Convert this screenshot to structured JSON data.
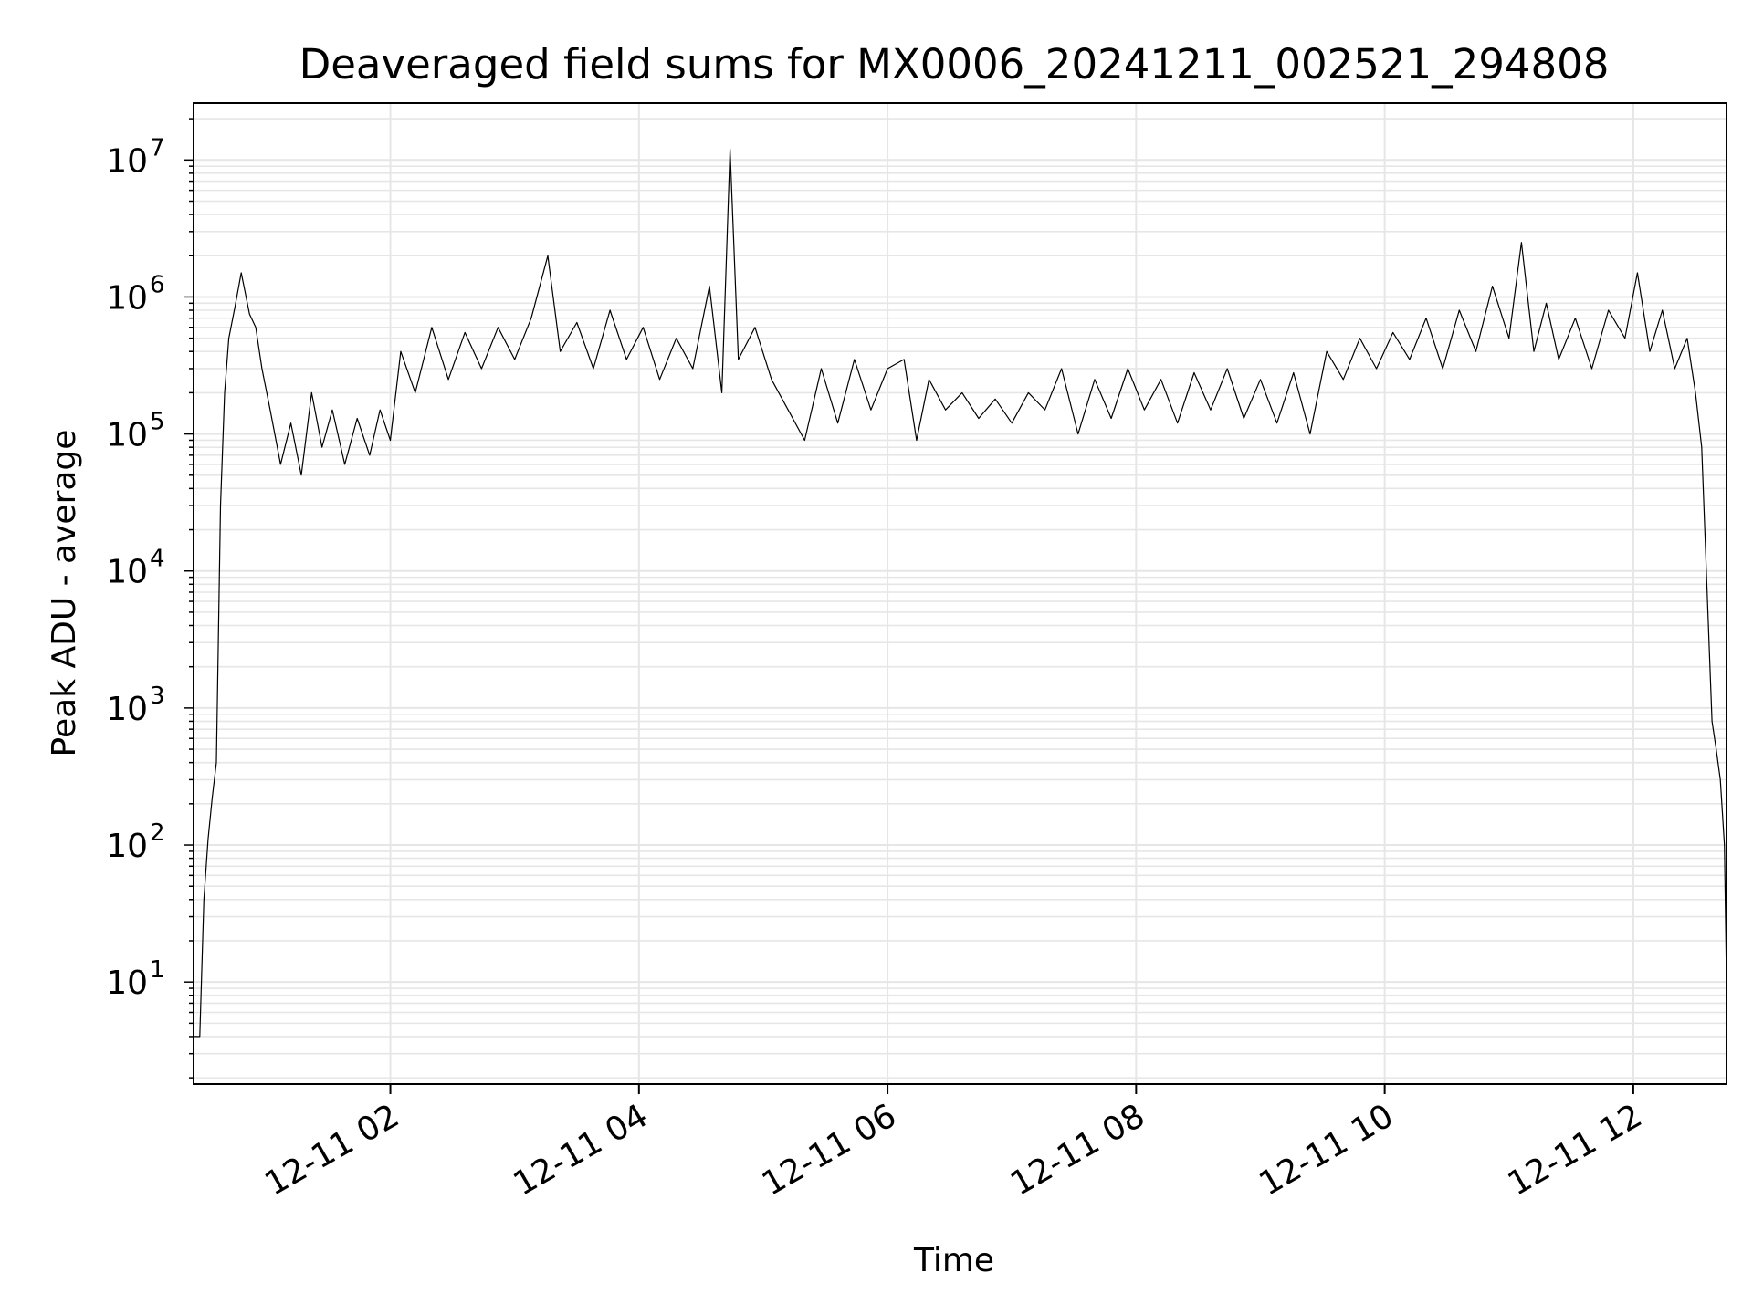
{
  "chart_data": {
    "type": "line",
    "title": "Deaveraged field sums for MX0006_20241211_002521_294808",
    "xlabel": "Time",
    "ylabel": "Peak ADU - average",
    "x_scale": "time",
    "y_scale": "log",
    "grid": true,
    "legend": "none",
    "xlim": [
      "2024-12-11 00:25",
      "2024-12-11 12:45"
    ],
    "ylim": [
      1.8,
      26000000
    ],
    "x_ticks": [
      {
        "value": "2024-12-11 02:00",
        "label": "12-11 02"
      },
      {
        "value": "2024-12-11 04:00",
        "label": "12-11 04"
      },
      {
        "value": "2024-12-11 06:00",
        "label": "12-11 06"
      },
      {
        "value": "2024-12-11 08:00",
        "label": "12-11 08"
      },
      {
        "value": "2024-12-11 10:00",
        "label": "12-11 10"
      },
      {
        "value": "2024-12-11 12:00",
        "label": "12-11 12"
      }
    ],
    "y_ticks": [
      {
        "value": 10,
        "base": "10",
        "exp": "1"
      },
      {
        "value": 100,
        "base": "10",
        "exp": "2"
      },
      {
        "value": 1000,
        "base": "10",
        "exp": "3"
      },
      {
        "value": 10000,
        "base": "10",
        "exp": "4"
      },
      {
        "value": 100000,
        "base": "10",
        "exp": "5"
      },
      {
        "value": 1000000,
        "base": "10",
        "exp": "6"
      },
      {
        "value": 10000000,
        "base": "10",
        "exp": "7"
      }
    ],
    "series": [
      {
        "color": "#000000",
        "points": [
          [
            "2024-12-11 00:25",
            4
          ],
          [
            "2024-12-11 00:28",
            4
          ],
          [
            "2024-12-11 00:30",
            40
          ],
          [
            "2024-12-11 00:32",
            110
          ],
          [
            "2024-12-11 00:34",
            220
          ],
          [
            "2024-12-11 00:36",
            400
          ],
          [
            "2024-12-11 00:38",
            30000
          ],
          [
            "2024-12-11 00:40",
            200000
          ],
          [
            "2024-12-11 00:42",
            500000
          ],
          [
            "2024-12-11 00:45",
            850000
          ],
          [
            "2024-12-11 00:48",
            1500000
          ],
          [
            "2024-12-11 00:52",
            750000
          ],
          [
            "2024-12-11 00:55",
            600000
          ],
          [
            "2024-12-11 00:58",
            300000
          ],
          [
            "2024-12-11 01:02",
            150000
          ],
          [
            "2024-12-11 01:07",
            60000
          ],
          [
            "2024-12-11 01:12",
            120000
          ],
          [
            "2024-12-11 01:17",
            50000
          ],
          [
            "2024-12-11 01:22",
            200000
          ],
          [
            "2024-12-11 01:27",
            80000
          ],
          [
            "2024-12-11 01:32",
            150000
          ],
          [
            "2024-12-11 01:38",
            60000
          ],
          [
            "2024-12-11 01:44",
            130000
          ],
          [
            "2024-12-11 01:50",
            70000
          ],
          [
            "2024-12-11 01:55",
            150000
          ],
          [
            "2024-12-11 02:00",
            90000
          ],
          [
            "2024-12-11 02:05",
            400000
          ],
          [
            "2024-12-11 02:12",
            200000
          ],
          [
            "2024-12-11 02:20",
            600000
          ],
          [
            "2024-12-11 02:28",
            250000
          ],
          [
            "2024-12-11 02:36",
            550000
          ],
          [
            "2024-12-11 02:44",
            300000
          ],
          [
            "2024-12-11 02:52",
            600000
          ],
          [
            "2024-12-11 03:00",
            350000
          ],
          [
            "2024-12-11 03:08",
            700000
          ],
          [
            "2024-12-11 03:16",
            2000000
          ],
          [
            "2024-12-11 03:22",
            400000
          ],
          [
            "2024-12-11 03:30",
            650000
          ],
          [
            "2024-12-11 03:38",
            300000
          ],
          [
            "2024-12-11 03:46",
            800000
          ],
          [
            "2024-12-11 03:54",
            350000
          ],
          [
            "2024-12-11 04:02",
            600000
          ],
          [
            "2024-12-11 04:10",
            250000
          ],
          [
            "2024-12-11 04:18",
            500000
          ],
          [
            "2024-12-11 04:26",
            300000
          ],
          [
            "2024-12-11 04:34",
            1200000
          ],
          [
            "2024-12-11 04:40",
            200000
          ],
          [
            "2024-12-11 04:44",
            12000000
          ],
          [
            "2024-12-11 04:48",
            350000
          ],
          [
            "2024-12-11 04:56",
            600000
          ],
          [
            "2024-12-11 05:04",
            250000
          ],
          [
            "2024-12-11 05:12",
            150000
          ],
          [
            "2024-12-11 05:20",
            90000
          ],
          [
            "2024-12-11 05:28",
            300000
          ],
          [
            "2024-12-11 05:36",
            120000
          ],
          [
            "2024-12-11 05:44",
            350000
          ],
          [
            "2024-12-11 05:52",
            150000
          ],
          [
            "2024-12-11 06:00",
            300000
          ],
          [
            "2024-12-11 06:08",
            350000
          ],
          [
            "2024-12-11 06:14",
            90000
          ],
          [
            "2024-12-11 06:20",
            250000
          ],
          [
            "2024-12-11 06:28",
            150000
          ],
          [
            "2024-12-11 06:36",
            200000
          ],
          [
            "2024-12-11 06:44",
            130000
          ],
          [
            "2024-12-11 06:52",
            180000
          ],
          [
            "2024-12-11 07:00",
            120000
          ],
          [
            "2024-12-11 07:08",
            200000
          ],
          [
            "2024-12-11 07:16",
            150000
          ],
          [
            "2024-12-11 07:24",
            300000
          ],
          [
            "2024-12-11 07:32",
            100000
          ],
          [
            "2024-12-11 07:40",
            250000
          ],
          [
            "2024-12-11 07:48",
            130000
          ],
          [
            "2024-12-11 07:56",
            300000
          ],
          [
            "2024-12-11 08:04",
            150000
          ],
          [
            "2024-12-11 08:12",
            250000
          ],
          [
            "2024-12-11 08:20",
            120000
          ],
          [
            "2024-12-11 08:28",
            280000
          ],
          [
            "2024-12-11 08:36",
            150000
          ],
          [
            "2024-12-11 08:44",
            300000
          ],
          [
            "2024-12-11 08:52",
            130000
          ],
          [
            "2024-12-11 09:00",
            250000
          ],
          [
            "2024-12-11 09:08",
            120000
          ],
          [
            "2024-12-11 09:16",
            280000
          ],
          [
            "2024-12-11 09:24",
            100000
          ],
          [
            "2024-12-11 09:32",
            400000
          ],
          [
            "2024-12-11 09:40",
            250000
          ],
          [
            "2024-12-11 09:48",
            500000
          ],
          [
            "2024-12-11 09:56",
            300000
          ],
          [
            "2024-12-11 10:04",
            550000
          ],
          [
            "2024-12-11 10:12",
            350000
          ],
          [
            "2024-12-11 10:20",
            700000
          ],
          [
            "2024-12-11 10:28",
            300000
          ],
          [
            "2024-12-11 10:36",
            800000
          ],
          [
            "2024-12-11 10:44",
            400000
          ],
          [
            "2024-12-11 10:52",
            1200000
          ],
          [
            "2024-12-11 11:00",
            500000
          ],
          [
            "2024-12-11 11:06",
            2500000
          ],
          [
            "2024-12-11 11:12",
            400000
          ],
          [
            "2024-12-11 11:18",
            900000
          ],
          [
            "2024-12-11 11:24",
            350000
          ],
          [
            "2024-12-11 11:32",
            700000
          ],
          [
            "2024-12-11 11:40",
            300000
          ],
          [
            "2024-12-11 11:48",
            800000
          ],
          [
            "2024-12-11 11:56",
            500000
          ],
          [
            "2024-12-11 12:02",
            1500000
          ],
          [
            "2024-12-11 12:08",
            400000
          ],
          [
            "2024-12-11 12:14",
            800000
          ],
          [
            "2024-12-11 12:20",
            300000
          ],
          [
            "2024-12-11 12:26",
            500000
          ],
          [
            "2024-12-11 12:30",
            200000
          ],
          [
            "2024-12-11 12:33",
            80000
          ],
          [
            "2024-12-11 12:36",
            5000
          ],
          [
            "2024-12-11 12:38",
            800
          ],
          [
            "2024-12-11 12:40",
            500
          ],
          [
            "2024-12-11 12:42",
            300
          ],
          [
            "2024-12-11 12:44",
            100
          ],
          [
            "2024-12-11 12:45",
            10
          ]
        ]
      }
    ]
  }
}
